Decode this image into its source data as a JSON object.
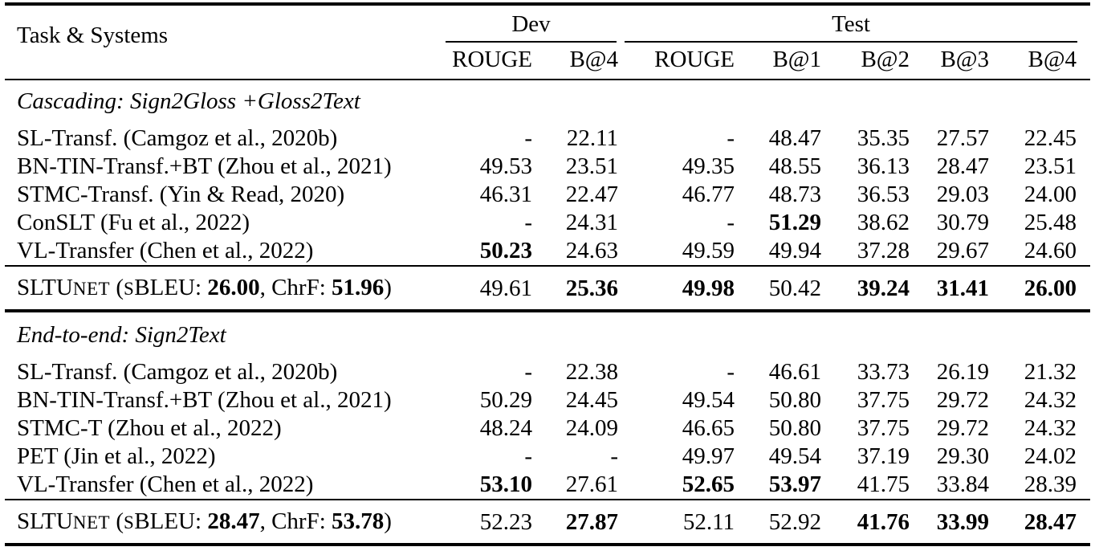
{
  "page": {
    "background": "#ffffff",
    "text_color": "#000000",
    "rule_color": "#000000"
  },
  "table": {
    "header": {
      "task_systems_label": "Task & Systems",
      "groups": [
        {
          "label": "Dev",
          "columns": [
            "ROUGE",
            "B@4"
          ]
        },
        {
          "label": "Test",
          "columns": [
            "ROUGE",
            "B@1",
            "B@2",
            "B@3",
            "B@4"
          ]
        }
      ]
    },
    "sections": [
      {
        "title": "Cascading: Sign2Gloss +Gloss2Text",
        "rows": [
          {
            "system": "SL-Transf. (Camgoz et al., 2020b)",
            "values": [
              "-",
              "22.11",
              "-",
              "48.47",
              "35.35",
              "27.57",
              "22.45"
            ],
            "bold": [
              false,
              false,
              false,
              false,
              false,
              false,
              false
            ]
          },
          {
            "system": "BN-TIN-Transf.+BT (Zhou et al., 2021)",
            "values": [
              "49.53",
              "23.51",
              "49.35",
              "48.55",
              "36.13",
              "28.47",
              "23.51"
            ],
            "bold": [
              false,
              false,
              false,
              false,
              false,
              false,
              false
            ]
          },
          {
            "system": "STMC-Transf. (Yin & Read, 2020)",
            "values": [
              "46.31",
              "22.47",
              "46.77",
              "48.73",
              "36.53",
              "29.03",
              "24.00"
            ],
            "bold": [
              false,
              false,
              false,
              false,
              false,
              false,
              false
            ]
          },
          {
            "system": "ConSLT (Fu et al., 2022)",
            "values": [
              "-",
              "24.31",
              "-",
              "51.29",
              "38.62",
              "30.79",
              "25.48"
            ],
            "bold": [
              false,
              false,
              false,
              true,
              false,
              false,
              false
            ]
          },
          {
            "system": "VL-Transfer (Chen et al., 2022)",
            "values": [
              "50.23",
              "24.63",
              "49.59",
              "49.94",
              "37.28",
              "29.67",
              "24.60"
            ],
            "bold": [
              true,
              false,
              false,
              false,
              false,
              false,
              false
            ]
          }
        ],
        "summary": {
          "label": {
            "main": "SLTU",
            "smallcaps_tail": "net",
            "open": " (",
            "sbleu_small": "s",
            "sbleu_label": "BLEU: ",
            "sbleu_value": "26.00",
            "chrf_separator": ", ChrF: ",
            "chrf_value": "51.96",
            "close": ")"
          },
          "values": [
            "49.61",
            "25.36",
            "49.98",
            "50.42",
            "39.24",
            "31.41",
            "26.00"
          ],
          "bold": [
            false,
            true,
            true,
            false,
            true,
            true,
            true
          ]
        }
      },
      {
        "title": "End-to-end: Sign2Text",
        "rows": [
          {
            "system": "SL-Transf. (Camgoz et al., 2020b)",
            "values": [
              "-",
              "22.38",
              "-",
              "46.61",
              "33.73",
              "26.19",
              "21.32"
            ],
            "bold": [
              false,
              false,
              false,
              false,
              false,
              false,
              false
            ]
          },
          {
            "system": "BN-TIN-Transf.+BT (Zhou et al., 2021)",
            "values": [
              "50.29",
              "24.45",
              "49.54",
              "50.80",
              "37.75",
              "29.72",
              "24.32"
            ],
            "bold": [
              false,
              false,
              false,
              false,
              false,
              false,
              false
            ]
          },
          {
            "system": "STMC-T (Zhou et al., 2022)",
            "values": [
              "48.24",
              "24.09",
              "46.65",
              "50.80",
              "37.75",
              "29.72",
              "24.32"
            ],
            "bold": [
              false,
              false,
              false,
              false,
              false,
              false,
              false
            ]
          },
          {
            "system": "PET (Jin et al., 2022)",
            "values": [
              "-",
              "-",
              "49.97",
              "49.54",
              "37.19",
              "29.30",
              "24.02"
            ],
            "bold": [
              false,
              false,
              false,
              false,
              false,
              false,
              false
            ]
          },
          {
            "system": "VL-Transfer (Chen et al., 2022)",
            "values": [
              "53.10",
              "27.61",
              "52.65",
              "53.97",
              "41.75",
              "33.84",
              "28.39"
            ],
            "bold": [
              true,
              false,
              true,
              true,
              false,
              false,
              false
            ]
          }
        ],
        "summary": {
          "label": {
            "main": "SLTU",
            "smallcaps_tail": "net",
            "open": " (",
            "sbleu_small": "s",
            "sbleu_label": "BLEU: ",
            "sbleu_value": "28.47",
            "chrf_separator": ", ChrF: ",
            "chrf_value": "53.78",
            "close": ")"
          },
          "values": [
            "52.23",
            "27.87",
            "52.11",
            "52.92",
            "41.76",
            "33.99",
            "28.47"
          ],
          "bold": [
            false,
            true,
            false,
            false,
            true,
            true,
            true
          ]
        }
      }
    ]
  }
}
